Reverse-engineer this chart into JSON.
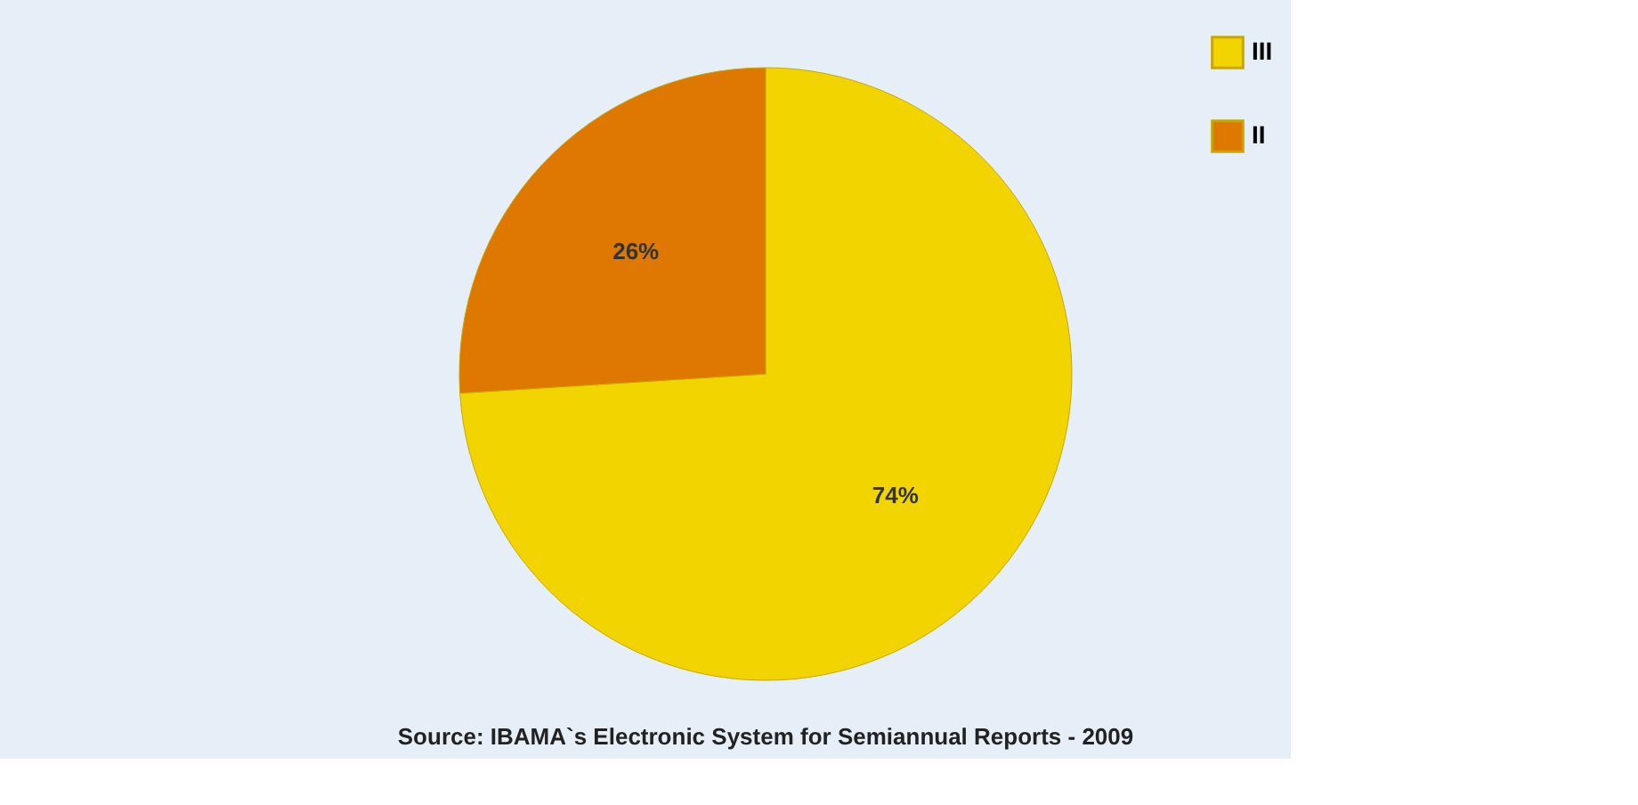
{
  "chart_data": {
    "type": "pie",
    "categories": [
      "III",
      "II"
    ],
    "values": [
      74,
      26
    ],
    "colors": [
      "#f2d500",
      "#de7800"
    ],
    "value_labels": [
      "74%",
      "26%"
    ],
    "legend": "right",
    "annotations": [
      "Source: IBAMA`s Electronic System for Semiannual Reports - 2009"
    ]
  }
}
